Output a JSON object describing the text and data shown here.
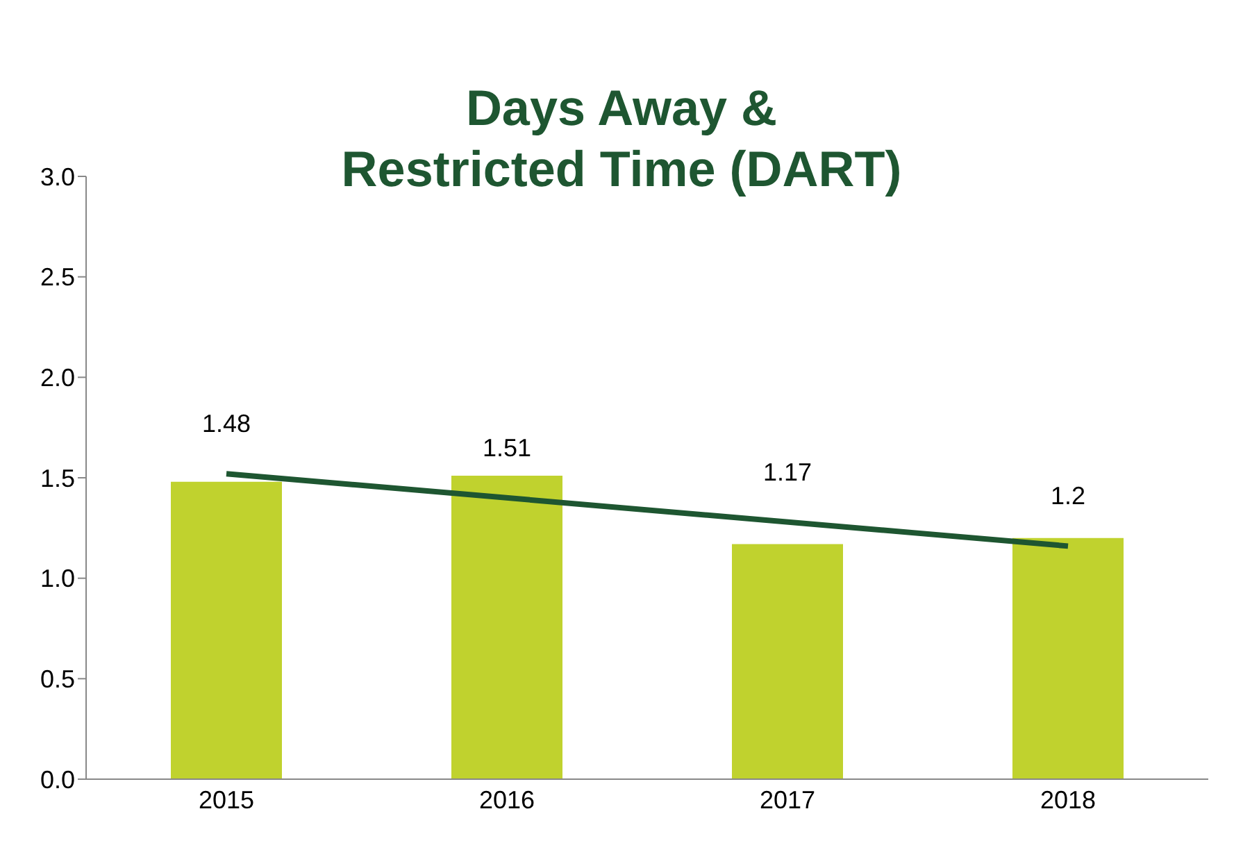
{
  "chart_data": {
    "type": "bar",
    "title": "Days Away &\nRestricted Time (DART)",
    "categories": [
      "2015",
      "2016",
      "2017",
      "2018"
    ],
    "series": [
      {
        "color": "#c0d22e",
        "values": [
          1.48,
          1.51,
          1.17,
          1.2
        ],
        "value_labels": [
          "1.48",
          "1.51",
          "1.17",
          "1.2"
        ]
      },
      {
        "type": "line",
        "color": "#1e5631",
        "values": [
          1.52,
          null,
          null,
          1.16
        ]
      }
    ],
    "ylim": [
      0,
      3
    ],
    "yticks": [
      {
        "value": 0,
        "label": "0.0"
      },
      {
        "value": 0.5,
        "label": "0.5"
      },
      {
        "value": 1,
        "label": "1.0"
      },
      {
        "value": 1.5,
        "label": "1.5"
      },
      {
        "value": 2,
        "label": "2.0"
      },
      {
        "value": 2.5,
        "label": "2.5"
      },
      {
        "value": 3,
        "label": "3.0"
      }
    ]
  }
}
